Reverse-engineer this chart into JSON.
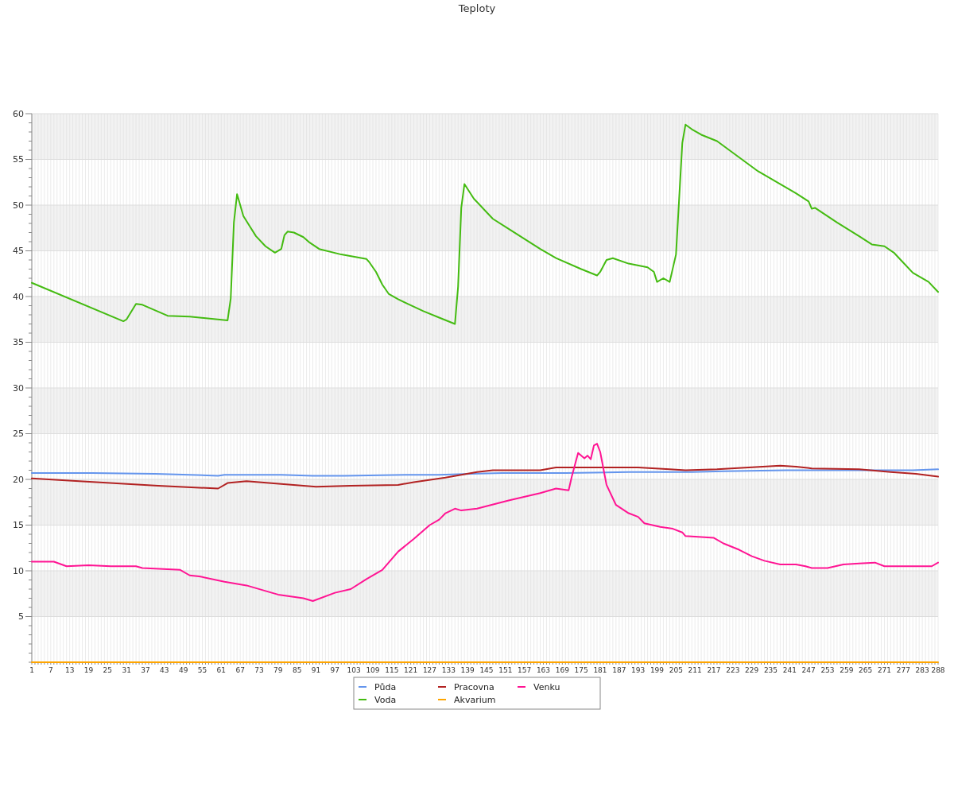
{
  "chart_data": {
    "type": "line",
    "title": "Teploty",
    "grid": true,
    "legend": "bottom",
    "marker": "none",
    "line_style": "solid",
    "xlim": [
      1,
      288
    ],
    "xticks": [
      1,
      {
        "value": 2,
        "label": null
      },
      {
        "value": 3,
        "label": null
      },
      {
        "value": 4,
        "label": null
      },
      {
        "value": 5,
        "label": null
      },
      {
        "value": 6,
        "label": null
      },
      7,
      {
        "value": 8,
        "label": null
      },
      {
        "value": 9,
        "label": null
      },
      {
        "value": 10,
        "label": null
      },
      {
        "value": 11,
        "label": null
      },
      {
        "value": 12,
        "label": null
      },
      13,
      {
        "value": 14,
        "label": null
      },
      {
        "value": 15,
        "label": null
      },
      {
        "value": 16,
        "label": null
      },
      {
        "value": 17,
        "label": null
      },
      {
        "value": 18,
        "label": null
      },
      19,
      {
        "value": 20,
        "label": null
      },
      {
        "value": 21,
        "label": null
      },
      {
        "value": 22,
        "label": null
      },
      {
        "value": 23,
        "label": null
      },
      {
        "value": 24,
        "label": null
      },
      25,
      {
        "value": 26,
        "label": null
      },
      {
        "value": 27,
        "label": null
      },
      {
        "value": 28,
        "label": null
      },
      {
        "value": 29,
        "label": null
      },
      {
        "value": 30,
        "label": null
      },
      31,
      {
        "value": 32,
        "label": null
      },
      {
        "value": 33,
        "label": null
      },
      {
        "value": 34,
        "label": null
      },
      {
        "value": 35,
        "label": null
      },
      {
        "value": 36,
        "label": null
      },
      37,
      {
        "value": 38,
        "label": null
      },
      {
        "value": 39,
        "label": null
      },
      {
        "value": 40,
        "label": null
      },
      {
        "value": 41,
        "label": null
      },
      {
        "value": 42,
        "label": null
      },
      43,
      {
        "value": 44,
        "label": null
      },
      {
        "value": 45,
        "label": null
      },
      {
        "value": 46,
        "label": null
      },
      {
        "value": 47,
        "label": null
      },
      {
        "value": 48,
        "label": null
      },
      49,
      {
        "value": 50,
        "label": null
      },
      {
        "value": 51,
        "label": null
      },
      {
        "value": 52,
        "label": null
      },
      {
        "value": 53,
        "label": null
      },
      {
        "value": 54,
        "label": null
      },
      55,
      {
        "value": 56,
        "label": null
      },
      {
        "value": 57,
        "label": null
      },
      {
        "value": 58,
        "label": null
      },
      {
        "value": 59,
        "label": null
      },
      {
        "value": 60,
        "label": null
      },
      61,
      {
        "value": 62,
        "label": null
      },
      {
        "value": 63,
        "label": null
      },
      {
        "value": 64,
        "label": null
      },
      {
        "value": 65,
        "label": null
      },
      {
        "value": 66,
        "label": null
      },
      67,
      {
        "value": 68,
        "label": null
      },
      {
        "value": 69,
        "label": null
      },
      {
        "value": 70,
        "label": null
      },
      {
        "value": 71,
        "label": null
      },
      {
        "value": 72,
        "label": null
      },
      73,
      {
        "value": 74,
        "label": null
      },
      {
        "value": 75,
        "label": null
      },
      {
        "value": 76,
        "label": null
      },
      {
        "value": 77,
        "label": null
      },
      {
        "value": 78,
        "label": null
      },
      79,
      {
        "value": 80,
        "label": null
      },
      {
        "value": 81,
        "label": null
      },
      {
        "value": 82,
        "label": null
      },
      {
        "value": 83,
        "label": null
      },
      {
        "value": 84,
        "label": null
      },
      85,
      {
        "value": 86,
        "label": null
      },
      {
        "value": 87,
        "label": null
      },
      {
        "value": 88,
        "label": null
      },
      {
        "value": 89,
        "label": null
      },
      {
        "value": 90,
        "label": null
      },
      91,
      {
        "value": 92,
        "label": null
      },
      {
        "value": 93,
        "label": null
      },
      {
        "value": 94,
        "label": null
      },
      {
        "value": 95,
        "label": null
      },
      {
        "value": 96,
        "label": null
      },
      97,
      {
        "value": 98,
        "label": null
      },
      {
        "value": 99,
        "label": null
      },
      {
        "value": 100,
        "label": null
      },
      {
        "value": 101,
        "label": null
      },
      {
        "value": 102,
        "label": null
      },
      103,
      {
        "value": 104,
        "label": null
      },
      {
        "value": 105,
        "label": null
      },
      {
        "value": 106,
        "label": null
      },
      {
        "value": 107,
        "label": null
      },
      {
        "value": 108,
        "label": null
      },
      109,
      {
        "value": 110,
        "label": null
      },
      {
        "value": 111,
        "label": null
      },
      {
        "value": 112,
        "label": null
      },
      {
        "value": 113,
        "label": null
      },
      {
        "value": 114,
        "label": null
      },
      115,
      {
        "value": 116,
        "label": null
      },
      {
        "value": 117,
        "label": null
      },
      {
        "value": 118,
        "label": null
      },
      {
        "value": 119,
        "label": null
      },
      {
        "value": 120,
        "label": null
      },
      121,
      {
        "value": 122,
        "label": null
      },
      {
        "value": 123,
        "label": null
      },
      {
        "value": 124,
        "label": null
      },
      {
        "value": 125,
        "label": null
      },
      {
        "value": 126,
        "label": null
      },
      127,
      {
        "value": 128,
        "label": null
      },
      {
        "value": 129,
        "label": null
      },
      {
        "value": 130,
        "label": null
      },
      {
        "value": 131,
        "label": null
      },
      {
        "value": 132,
        "label": null
      },
      133,
      {
        "value": 134,
        "label": null
      },
      {
        "value": 135,
        "label": null
      },
      {
        "value": 136,
        "label": null
      },
      {
        "value": 137,
        "label": null
      },
      {
        "value": 138,
        "label": null
      },
      139,
      {
        "value": 140,
        "label": null
      },
      {
        "value": 141,
        "label": null
      },
      {
        "value": 142,
        "label": null
      },
      {
        "value": 143,
        "label": null
      },
      {
        "value": 144,
        "label": null
      },
      145,
      {
        "value": 146,
        "label": null
      },
      {
        "value": 147,
        "label": null
      },
      {
        "value": 148,
        "label": null
      },
      {
        "value": 149,
        "label": null
      },
      {
        "value": 150,
        "label": null
      },
      151,
      {
        "value": 152,
        "label": null
      },
      {
        "value": 153,
        "label": null
      },
      {
        "value": 154,
        "label": null
      },
      {
        "value": 155,
        "label": null
      },
      {
        "value": 156,
        "label": null
      },
      157,
      {
        "value": 158,
        "label": null
      },
      {
        "value": 159,
        "label": null
      },
      {
        "value": 160,
        "label": null
      },
      {
        "value": 161,
        "label": null
      },
      {
        "value": 162,
        "label": null
      },
      163,
      {
        "value": 164,
        "label": null
      },
      {
        "value": 165,
        "label": null
      },
      {
        "value": 166,
        "label": null
      },
      {
        "value": 167,
        "label": null
      },
      {
        "value": 168,
        "label": null
      },
      169,
      {
        "value": 170,
        "label": null
      },
      {
        "value": 171,
        "label": null
      },
      {
        "value": 172,
        "label": null
      },
      {
        "value": 173,
        "label": null
      },
      {
        "value": 174,
        "label": null
      },
      175,
      {
        "value": 176,
        "label": null
      },
      {
        "value": 177,
        "label": null
      },
      {
        "value": 178,
        "label": null
      },
      {
        "value": 179,
        "label": null
      },
      {
        "value": 180,
        "label": null
      },
      181,
      {
        "value": 182,
        "label": null
      },
      {
        "value": 183,
        "label": null
      },
      {
        "value": 184,
        "label": null
      },
      {
        "value": 185,
        "label": null
      },
      {
        "value": 186,
        "label": null
      },
      187,
      {
        "value": 188,
        "label": null
      },
      {
        "value": 189,
        "label": null
      },
      {
        "value": 190,
        "label": null
      },
      {
        "value": 191,
        "label": null
      },
      {
        "value": 192,
        "label": null
      },
      193,
      {
        "value": 194,
        "label": null
      },
      {
        "value": 195,
        "label": null
      },
      {
        "value": 196,
        "label": null
      },
      {
        "value": 197,
        "label": null
      },
      {
        "value": 198,
        "label": null
      },
      199,
      {
        "value": 200,
        "label": null
      },
      {
        "value": 201,
        "label": null
      },
      {
        "value": 202,
        "label": null
      },
      {
        "value": 203,
        "label": null
      },
      {
        "value": 204,
        "label": null
      },
      205,
      {
        "value": 206,
        "label": null
      },
      {
        "value": 207,
        "label": null
      },
      {
        "value": 208,
        "label": null
      },
      {
        "value": 209,
        "label": null
      },
      {
        "value": 210,
        "label": null
      },
      211,
      {
        "value": 212,
        "label": null
      },
      {
        "value": 213,
        "label": null
      },
      {
        "value": 214,
        "label": null
      },
      {
        "value": 215,
        "label": null
      },
      {
        "value": 216,
        "label": null
      },
      217,
      {
        "value": 218,
        "label": null
      },
      {
        "value": 219,
        "label": null
      },
      {
        "value": 220,
        "label": null
      },
      {
        "value": 221,
        "label": null
      },
      {
        "value": 222,
        "label": null
      },
      223,
      {
        "value": 224,
        "label": null
      },
      {
        "value": 225,
        "label": null
      },
      {
        "value": 226,
        "label": null
      },
      {
        "value": 227,
        "label": null
      },
      {
        "value": 228,
        "label": null
      },
      229,
      {
        "value": 230,
        "label": null
      },
      {
        "value": 231,
        "label": null
      },
      {
        "value": 232,
        "label": null
      },
      {
        "value": 233,
        "label": null
      },
      {
        "value": 234,
        "label": null
      },
      235,
      {
        "value": 236,
        "label": null
      },
      {
        "value": 237,
        "label": null
      },
      {
        "value": 238,
        "label": null
      },
      {
        "value": 239,
        "label": null
      },
      {
        "value": 240,
        "label": null
      },
      241,
      {
        "value": 242,
        "label": null
      },
      {
        "value": 243,
        "label": null
      },
      {
        "value": 244,
        "label": null
      },
      {
        "value": 245,
        "label": null
      },
      {
        "value": 246,
        "label": null
      },
      247,
      {
        "value": 248,
        "label": null
      },
      {
        "value": 249,
        "label": null
      },
      {
        "value": 250,
        "label": null
      },
      {
        "value": 251,
        "label": null
      },
      {
        "value": 252,
        "label": null
      },
      253,
      {
        "value": 254,
        "label": null
      },
      {
        "value": 255,
        "label": null
      },
      {
        "value": 256,
        "label": null
      },
      {
        "value": 257,
        "label": null
      },
      {
        "value": 258,
        "label": null
      },
      259,
      {
        "value": 260,
        "label": null
      },
      {
        "value": 261,
        "label": null
      },
      {
        "value": 262,
        "label": null
      },
      {
        "value": 263,
        "label": null
      },
      {
        "value": 264,
        "label": null
      },
      265,
      {
        "value": 266,
        "label": null
      },
      {
        "value": 267,
        "label": null
      },
      {
        "value": 268,
        "label": null
      },
      {
        "value": 269,
        "label": null
      },
      {
        "value": 270,
        "label": null
      },
      271,
      {
        "value": 272,
        "label": null
      },
      {
        "value": 273,
        "label": null
      },
      {
        "value": 274,
        "label": null
      },
      {
        "value": 275,
        "label": null
      },
      {
        "value": 276,
        "label": null
      },
      277,
      {
        "value": 278,
        "label": null
      },
      {
        "value": 279,
        "label": null
      },
      {
        "value": 280,
        "label": null
      },
      {
        "value": 281,
        "label": null
      },
      {
        "value": 282,
        "label": null
      },
      283,
      {
        "value": 284,
        "label": null
      },
      {
        "value": 285,
        "label": null
      },
      {
        "value": 286,
        "label": null
      },
      {
        "value": 287,
        "label": null
      },
      288
    ],
    "ylim": [
      0,
      60
    ],
    "yticks": [
      {
        "value": 0,
        "label": null
      },
      {
        "value": 1,
        "label": null
      },
      {
        "value": 2,
        "label": null
      },
      {
        "value": 3,
        "label": null
      },
      {
        "value": 4,
        "label": null
      },
      5,
      {
        "value": 6,
        "label": null
      },
      {
        "value": 7,
        "label": null
      },
      {
        "value": 8,
        "label": null
      },
      {
        "value": 9,
        "label": null
      },
      10,
      {
        "value": 11,
        "label": null
      },
      {
        "value": 12,
        "label": null
      },
      {
        "value": 13,
        "label": null
      },
      {
        "value": 14,
        "label": null
      },
      15,
      {
        "value": 16,
        "label": null
      },
      {
        "value": 17,
        "label": null
      },
      {
        "value": 18,
        "label": null
      },
      {
        "value": 19,
        "label": null
      },
      20,
      {
        "value": 21,
        "label": null
      },
      {
        "value": 22,
        "label": null
      },
      {
        "value": 23,
        "label": null
      },
      {
        "value": 24,
        "label": null
      },
      25,
      {
        "value": 26,
        "label": null
      },
      {
        "value": 27,
        "label": null
      },
      {
        "value": 28,
        "label": null
      },
      {
        "value": 29,
        "label": null
      },
      30,
      {
        "value": 31,
        "label": null
      },
      {
        "value": 32,
        "label": null
      },
      {
        "value": 33,
        "label": null
      },
      {
        "value": 34,
        "label": null
      },
      35,
      {
        "value": 36,
        "label": null
      },
      {
        "value": 37,
        "label": null
      },
      {
        "value": 38,
        "label": null
      },
      {
        "value": 39,
        "label": null
      },
      40,
      {
        "value": 41,
        "label": null
      },
      {
        "value": 42,
        "label": null
      },
      {
        "value": 43,
        "label": null
      },
      {
        "value": 44,
        "label": null
      },
      45,
      {
        "value": 46,
        "label": null
      },
      {
        "value": 47,
        "label": null
      },
      {
        "value": 48,
        "label": null
      },
      {
        "value": 49,
        "label": null
      },
      50,
      {
        "value": 51,
        "label": null
      },
      {
        "value": 52,
        "label": null
      },
      {
        "value": 53,
        "label": null
      },
      {
        "value": 54,
        "label": null
      },
      55,
      {
        "value": 56,
        "label": null
      },
      {
        "value": 57,
        "label": null
      },
      {
        "value": 58,
        "label": null
      },
      {
        "value": 59,
        "label": null
      },
      60
    ],
    "series": [
      {
        "name": "Půda",
        "color": "#6495ed",
        "x": [
          1,
          20,
          40,
          60,
          62,
          80,
          90,
          100,
          120,
          130,
          140,
          150,
          170,
          190,
          200,
          210,
          220,
          240,
          260,
          270,
          280,
          288
        ],
        "values": [
          20.7,
          20.7,
          20.6,
          20.4,
          20.5,
          20.5,
          20.4,
          20.4,
          20.5,
          20.5,
          20.6,
          20.7,
          20.7,
          20.8,
          20.8,
          20.8,
          20.9,
          21.0,
          21.0,
          21.0,
          21.0,
          21.1
        ]
      },
      {
        "name": "Voda",
        "color": "#44bb11",
        "x": [
          1,
          30,
          31,
          34,
          36,
          44,
          51,
          63,
          64,
          65,
          66,
          68,
          70,
          72,
          75,
          78,
          80,
          81,
          82,
          84,
          87,
          89,
          92,
          99,
          107,
          108,
          110,
          112,
          114,
          117,
          120,
          125,
          130,
          135,
          136,
          137,
          138,
          141,
          147,
          152,
          162,
          167,
          175,
          180,
          181,
          183,
          185,
          190,
          196,
          198,
          199,
          201,
          203,
          205,
          207,
          208,
          210,
          213,
          218,
          231,
          243,
          247,
          248,
          249,
          256,
          263,
          267,
          271,
          274,
          277,
          280,
          285,
          288
        ],
        "values": [
          41.5,
          37.3,
          37.5,
          39.2,
          39.1,
          37.9,
          37.8,
          37.4,
          39.8,
          48.1,
          51.2,
          48.8,
          47.7,
          46.6,
          45.5,
          44.8,
          45.2,
          46.7,
          47.1,
          47.0,
          46.5,
          45.9,
          45.2,
          44.6,
          44.1,
          43.7,
          42.7,
          41.3,
          40.3,
          39.7,
          39.2,
          38.4,
          37.7,
          37.0,
          41.1,
          49.7,
          52.3,
          50.7,
          48.5,
          47.4,
          45.2,
          44.2,
          43.0,
          42.3,
          42.7,
          44.0,
          44.2,
          43.6,
          43.2,
          42.7,
          41.6,
          42.0,
          41.6,
          44.6,
          56.8,
          58.8,
          58.3,
          57.7,
          57.0,
          53.7,
          51.3,
          50.4,
          49.6,
          49.7,
          48.1,
          46.6,
          45.7,
          45.5,
          44.8,
          43.7,
          42.6,
          41.6,
          40.5
        ]
      },
      {
        "name": "Pracovna",
        "color": "#b22222",
        "x": [
          1,
          16,
          41,
          60,
          63,
          69,
          91,
          102,
          117,
          122,
          132,
          142,
          147,
          162,
          167,
          180,
          193,
          203,
          208,
          218,
          228,
          238,
          243,
          248,
          263,
          273,
          281,
          288
        ],
        "values": [
          20.1,
          19.8,
          19.3,
          19.0,
          19.6,
          19.8,
          19.2,
          19.3,
          19.4,
          19.7,
          20.2,
          20.8,
          21.0,
          21.0,
          21.3,
          21.3,
          21.3,
          21.1,
          21.0,
          21.1,
          21.3,
          21.5,
          21.4,
          21.2,
          21.1,
          20.8,
          20.6,
          20.3
        ]
      },
      {
        "name": "Akvarium",
        "color": "#ffa500",
        "x": [
          1,
          288
        ],
        "values": [
          0,
          0
        ]
      },
      {
        "name": "Venku",
        "color": "#ff1493",
        "x": [
          1,
          8,
          12,
          19,
          26,
          34,
          36,
          48,
          51,
          54,
          62,
          69,
          77,
          79,
          87,
          90,
          97,
          102,
          107,
          112,
          117,
          122,
          127,
          130,
          132,
          135,
          137,
          142,
          152,
          162,
          167,
          171,
          172,
          174,
          176,
          177,
          178,
          179,
          180,
          181,
          183,
          186,
          190,
          193,
          195,
          200,
          204,
          207,
          208,
          213,
          217,
          220,
          225,
          229,
          233,
          238,
          243,
          246,
          248,
          253,
          258,
          263,
          268,
          271,
          278,
          286,
          288
        ],
        "values": [
          11.0,
          11.0,
          10.5,
          10.6,
          10.5,
          10.5,
          10.3,
          10.1,
          9.5,
          9.4,
          8.8,
          8.4,
          7.6,
          7.4,
          7.0,
          6.7,
          7.6,
          8.0,
          9.1,
          10.1,
          12.1,
          13.5,
          15.0,
          15.6,
          16.3,
          16.8,
          16.6,
          16.8,
          17.7,
          18.5,
          19.0,
          18.8,
          20.3,
          22.9,
          22.3,
          22.6,
          22.2,
          23.7,
          23.9,
          23.0,
          19.4,
          17.2,
          16.3,
          15.9,
          15.2,
          14.8,
          14.6,
          14.2,
          13.8,
          13.7,
          13.6,
          13.0,
          12.3,
          11.6,
          11.1,
          10.7,
          10.7,
          10.5,
          10.3,
          10.3,
          10.7,
          10.8,
          10.9,
          10.5,
          10.5,
          10.5,
          10.9
        ]
      }
    ]
  }
}
